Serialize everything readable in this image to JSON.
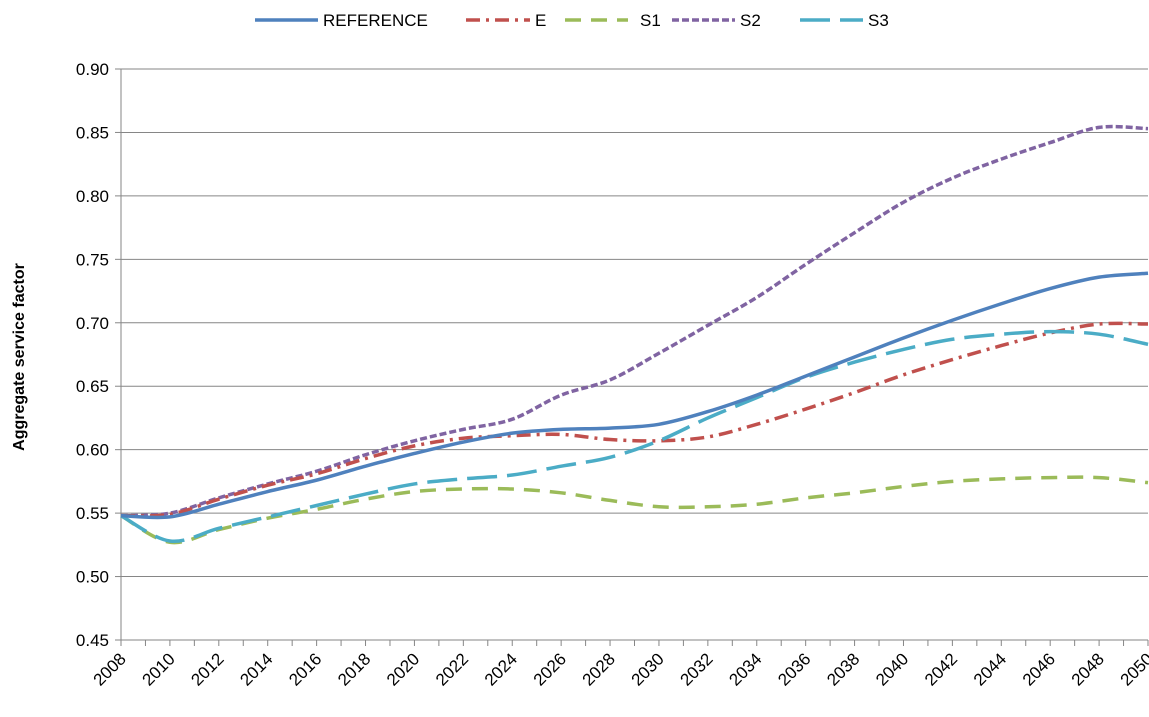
{
  "chart_data": {
    "type": "line",
    "title": "",
    "xlabel": "",
    "ylabel": "Aggregate service factor",
    "ylim": [
      0.45,
      0.9
    ],
    "yticks": [
      "0.45",
      "0.50",
      "0.55",
      "0.60",
      "0.65",
      "0.70",
      "0.75",
      "0.80",
      "0.85",
      "0.90"
    ],
    "xlim": [
      2008,
      2050
    ],
    "xticks": [
      "2008",
      "2010",
      "2012",
      "2014",
      "2016",
      "2018",
      "2020",
      "2022",
      "2024",
      "2026",
      "2028",
      "2030",
      "2032",
      "2034",
      "2036",
      "2038",
      "2040",
      "2042",
      "2044",
      "2046",
      "2048",
      "2050"
    ],
    "grid": "horizontal",
    "legend": "top",
    "x": [
      2008,
      2010,
      2012,
      2014,
      2016,
      2018,
      2020,
      2022,
      2024,
      2026,
      2028,
      2030,
      2032,
      2034,
      2036,
      2038,
      2040,
      2042,
      2044,
      2046,
      2048,
      2050
    ],
    "series": [
      {
        "name": "REFERENCE",
        "color": "#4f81bd",
        "dash": "solid",
        "values": [
          0.548,
          0.547,
          0.557,
          0.567,
          0.576,
          0.587,
          0.597,
          0.606,
          0.613,
          0.616,
          0.617,
          0.62,
          0.63,
          0.643,
          0.658,
          0.673,
          0.688,
          0.702,
          0.715,
          0.727,
          0.736,
          0.739
        ]
      },
      {
        "name": "E",
        "color": "#c0504d",
        "dash": "dashdot",
        "values": [
          0.548,
          0.549,
          0.561,
          0.572,
          0.581,
          0.593,
          0.603,
          0.609,
          0.611,
          0.612,
          0.608,
          0.607,
          0.61,
          0.62,
          0.632,
          0.645,
          0.659,
          0.671,
          0.682,
          0.692,
          0.699,
          0.699
        ]
      },
      {
        "name": "S1",
        "color": "#9bbb59",
        "dash": "dash",
        "values": [
          0.548,
          0.527,
          0.537,
          0.546,
          0.553,
          0.561,
          0.567,
          0.569,
          0.569,
          0.566,
          0.56,
          0.555,
          0.555,
          0.557,
          0.562,
          0.566,
          0.571,
          0.575,
          0.577,
          0.578,
          0.578,
          0.574
        ]
      },
      {
        "name": "S2",
        "color": "#8064a2",
        "dash": "shortdash",
        "values": [
          0.548,
          0.55,
          0.562,
          0.573,
          0.583,
          0.596,
          0.607,
          0.616,
          0.624,
          0.643,
          0.655,
          0.676,
          0.698,
          0.72,
          0.746,
          0.771,
          0.795,
          0.814,
          0.829,
          0.842,
          0.854,
          0.853
        ]
      },
      {
        "name": "S3",
        "color": "#4bacc6",
        "dash": "longdash",
        "values": [
          0.548,
          0.528,
          0.538,
          0.547,
          0.556,
          0.565,
          0.573,
          0.577,
          0.58,
          0.587,
          0.594,
          0.607,
          0.625,
          0.641,
          0.657,
          0.669,
          0.679,
          0.687,
          0.691,
          0.693,
          0.691,
          0.683
        ]
      }
    ]
  }
}
